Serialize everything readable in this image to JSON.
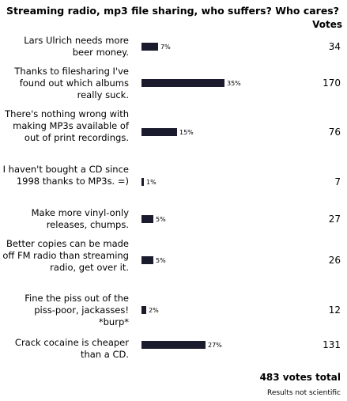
{
  "title": "Streaming radio, mp3 file sharing, who suffers? Who cares?",
  "votes_header": "Votes",
  "options": [
    {
      "label": "Lars Ulrich needs more beer money.",
      "percent": 7,
      "percent_label": "7%",
      "votes": "34"
    },
    {
      "label": "Thanks to filesharing I've found out which albums really suck.",
      "percent": 35,
      "percent_label": "35%",
      "votes": "170"
    },
    {
      "label": "There's nothing wrong with making MP3s available of out of print recordings.",
      "percent": 15,
      "percent_label": "15%",
      "votes": "76"
    },
    {
      "label": "I haven't bought a CD since 1998 thanks to MP3s. =)",
      "percent": 1,
      "percent_label": "1%",
      "votes": "7"
    },
    {
      "label": "Make more vinyl-only releases, chumps.",
      "percent": 5,
      "percent_label": "5%",
      "votes": "27"
    },
    {
      "label": "Better copies can be made off FM radio than streaming radio, get over it.",
      "percent": 5,
      "percent_label": "5%",
      "votes": "26"
    },
    {
      "label": "Fine the piss out of the piss-poor, jackasses! *burp*",
      "percent": 2,
      "percent_label": "2%",
      "votes": "12"
    },
    {
      "label": "Crack cocaine is cheaper than a CD.",
      "percent": 27,
      "percent_label": "27%",
      "votes": "131"
    }
  ],
  "total": "483 votes total",
  "disclaimer": "Results not scientific",
  "colors": {
    "bar": "#1b1b2e",
    "text": "#000000",
    "background": "#ffffff"
  }
}
